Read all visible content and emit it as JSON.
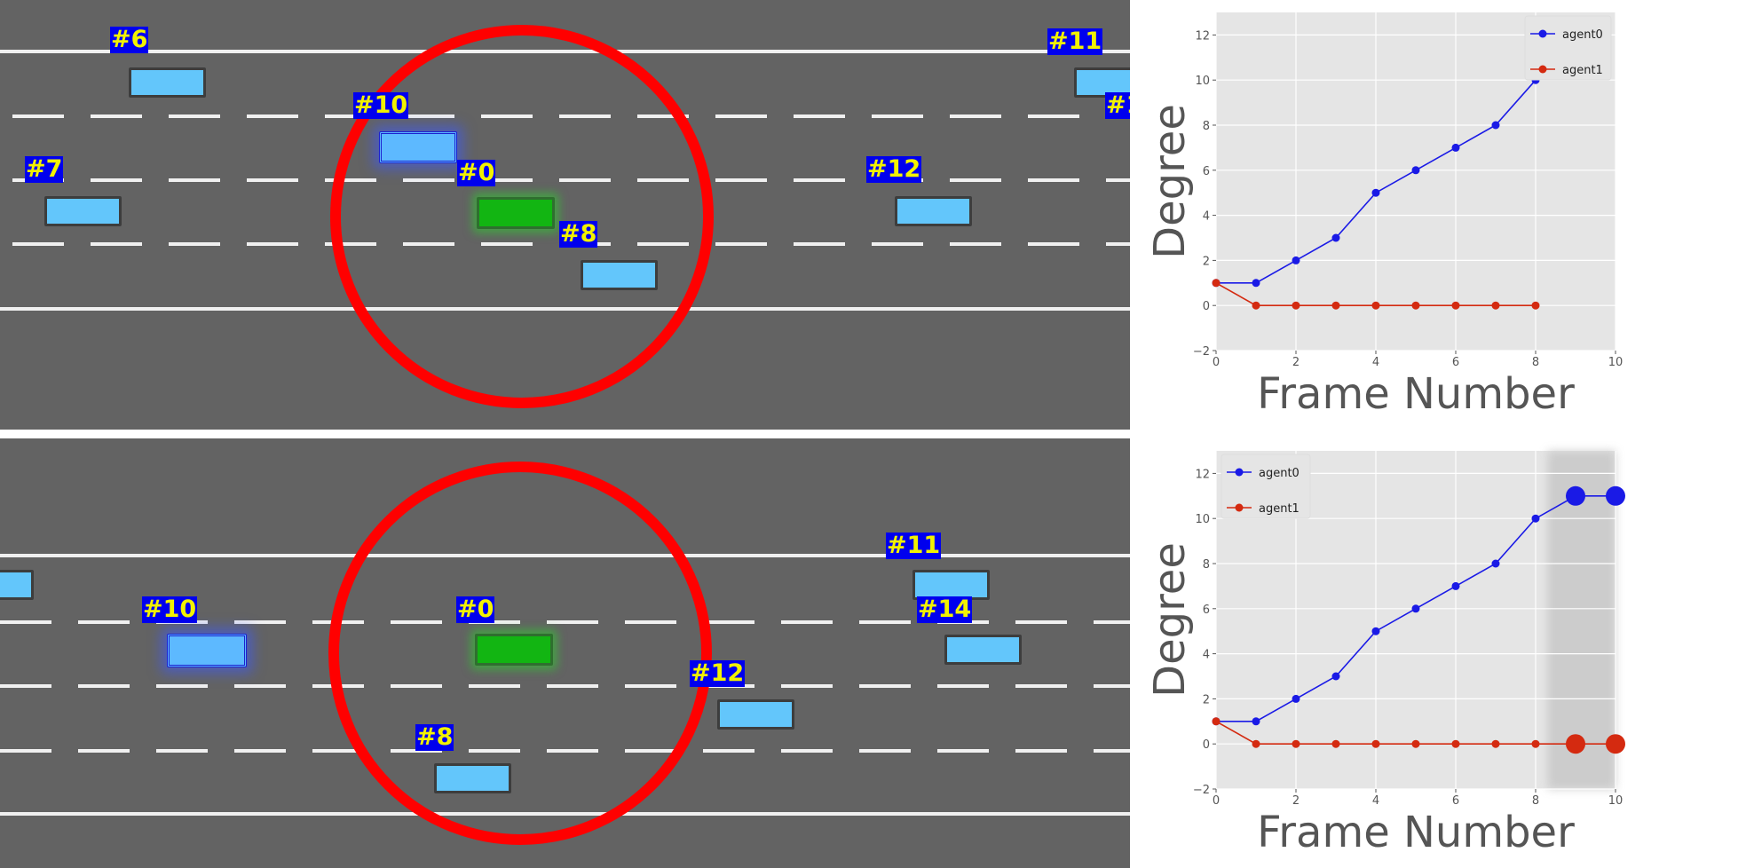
{
  "panels": {
    "top": {
      "car_labels": [
        "#6",
        "#10",
        "#7",
        "#0",
        "#8",
        "#12",
        "#11",
        "#1"
      ]
    },
    "bottom": {
      "car_labels": [
        "#10",
        "#0",
        "#8",
        "#12",
        "#11",
        "#14"
      ]
    }
  },
  "colors": {
    "road": "#636363",
    "ego_car": "#12b512",
    "other_car": "#63c6fb",
    "label_bg": "#0000ee",
    "label_text": "#f2f200",
    "circle": "#ff0000",
    "agent0": "#1a1ae6",
    "agent1": "#d42a10",
    "plot_bg": "#e5e5e5"
  },
  "chart_data": [
    {
      "type": "line",
      "xlabel": "Frame Number",
      "ylabel": "Degree",
      "xlim": [
        0,
        10
      ],
      "ylim": [
        -2,
        13
      ],
      "xticks": [
        "0",
        "2",
        "4",
        "6",
        "8",
        "10"
      ],
      "yticks": [
        "−2",
        "0",
        "2",
        "4",
        "6",
        "8",
        "10",
        "12"
      ],
      "grid": true,
      "legend": "top-right",
      "series": [
        {
          "name": "agent0",
          "x": [
            0,
            1,
            2,
            3,
            4,
            5,
            6,
            7,
            8
          ],
          "values": [
            1,
            1,
            2,
            3,
            5,
            6,
            7,
            8,
            10
          ]
        },
        {
          "name": "agent1",
          "x": [
            0,
            1,
            2,
            3,
            4,
            5,
            6,
            7,
            8
          ],
          "values": [
            1,
            0,
            0,
            0,
            0,
            0,
            0,
            0,
            0
          ]
        }
      ]
    },
    {
      "type": "line",
      "xlabel": "Frame Number",
      "ylabel": "Degree",
      "xlim": [
        0,
        10
      ],
      "ylim": [
        -2,
        13
      ],
      "xticks": [
        "0",
        "2",
        "4",
        "6",
        "8",
        "10"
      ],
      "yticks": [
        "−2",
        "0",
        "2",
        "4",
        "6",
        "8",
        "10",
        "12"
      ],
      "grid": true,
      "legend": "top-left",
      "highlight_range": [
        8.3,
        10
      ],
      "series": [
        {
          "name": "agent0",
          "x": [
            0,
            1,
            2,
            3,
            4,
            5,
            6,
            7,
            8,
            9,
            10
          ],
          "values": [
            1,
            1,
            2,
            3,
            5,
            6,
            7,
            8,
            10,
            11,
            11
          ],
          "predicted_from": 9
        },
        {
          "name": "agent1",
          "x": [
            0,
            1,
            2,
            3,
            4,
            5,
            6,
            7,
            8,
            9,
            10
          ],
          "values": [
            1,
            0,
            0,
            0,
            0,
            0,
            0,
            0,
            0,
            0,
            0
          ],
          "predicted_from": 9
        }
      ]
    }
  ]
}
